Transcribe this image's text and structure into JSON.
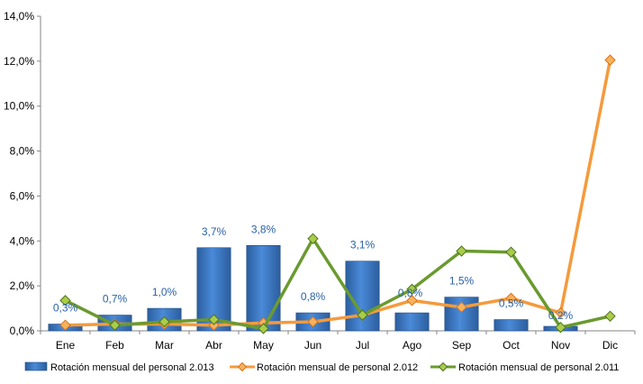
{
  "chart_data": {
    "type": "bar",
    "categories": [
      "Ene",
      "Feb",
      "Mar",
      "Abr",
      "May",
      "Jun",
      "Jul",
      "Ago",
      "Sep",
      "Oct",
      "Nov",
      "Dic"
    ],
    "y_ticks": [
      "0,0%",
      "2,0%",
      "4,0%",
      "6,0%",
      "8,0%",
      "10,0%",
      "12,0%",
      "14,0%"
    ],
    "ylim": [
      0,
      14
    ],
    "y_unit": "%",
    "grid": false,
    "legend_position": "bottom",
    "series": [
      {
        "name": "Rotación mensual del personal 2.013",
        "type": "bar",
        "color": "#3a78c9",
        "values": [
          0.3,
          0.7,
          1.0,
          3.7,
          3.8,
          0.8,
          3.1,
          0.8,
          1.5,
          0.5,
          0.2,
          null
        ],
        "labels": [
          "0,3%",
          "0,7%",
          "1,0%",
          "3,7%",
          "3,8%",
          "0,8%",
          "3,1%",
          "0,8%",
          "1,5%",
          "0,5%",
          "0,2%",
          ""
        ]
      },
      {
        "name": "Rotación mensual de personal 2.012",
        "type": "line",
        "color": "#f59a3c",
        "values": [
          0.25,
          0.3,
          0.3,
          0.25,
          0.35,
          0.4,
          0.7,
          1.35,
          1.05,
          1.45,
          0.8,
          12.05
        ]
      },
      {
        "name": "Rotación mensual de personal 2.011",
        "type": "line",
        "color": "#6a9a2f",
        "values": [
          1.35,
          0.25,
          0.4,
          0.5,
          0.1,
          4.1,
          0.7,
          1.85,
          3.55,
          3.5,
          0.15,
          0.65
        ]
      }
    ]
  }
}
